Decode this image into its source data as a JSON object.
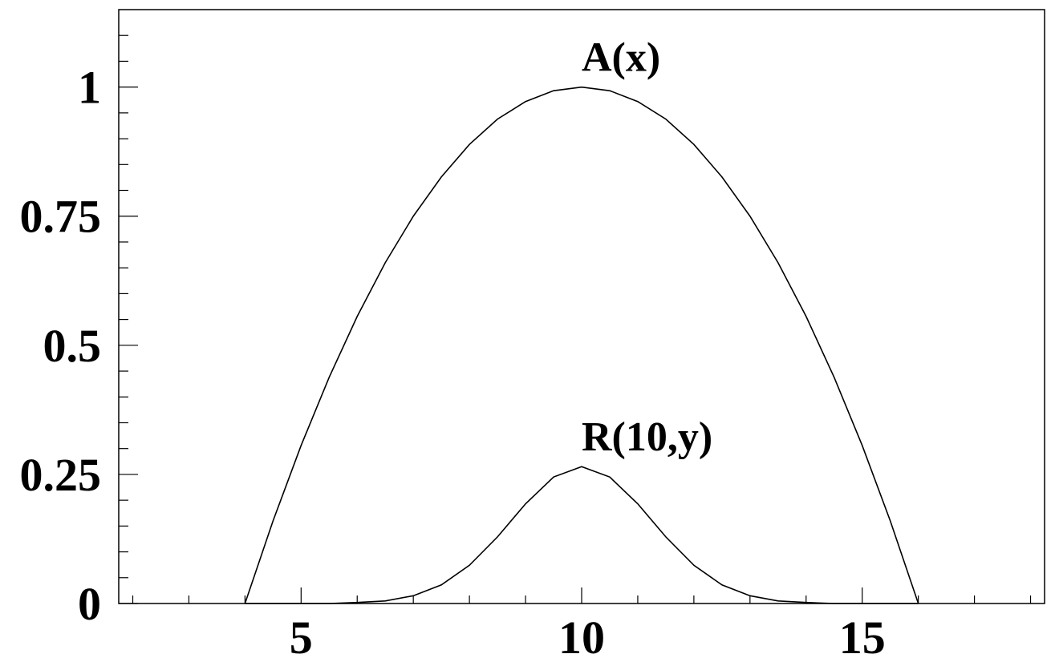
{
  "chart_data": {
    "type": "line",
    "x": [
      4,
      4.5,
      5,
      5.5,
      6,
      6.5,
      7,
      7.5,
      8,
      8.5,
      9,
      9.5,
      10,
      10.5,
      11,
      11.5,
      12,
      12.5,
      13,
      13.5,
      14,
      14.5,
      15,
      15.5,
      16
    ],
    "series": [
      {
        "name": "A(x)",
        "color": "#000000",
        "values": [
          0,
          0.16,
          0.306,
          0.438,
          0.556,
          0.66,
          0.75,
          0.826,
          0.889,
          0.938,
          0.972,
          0.993,
          1,
          0.993,
          0.972,
          0.938,
          0.889,
          0.826,
          0.75,
          0.66,
          0.556,
          0.438,
          0.306,
          0.16,
          0
        ]
      },
      {
        "name": "R(10,y)",
        "color": "#000000",
        "values": [
          0,
          0,
          0,
          0,
          0.002,
          0.005,
          0.015,
          0.036,
          0.074,
          0.129,
          0.193,
          0.245,
          0.265,
          0.245,
          0.193,
          0.129,
          0.074,
          0.036,
          0.015,
          0.005,
          0.002,
          0,
          0,
          0,
          0
        ]
      }
    ],
    "xlim": [
      1.75,
      18.25
    ],
    "ylim": [
      0,
      1.15
    ],
    "xticks": [
      5,
      10,
      15
    ],
    "yticks": [
      0,
      0.25,
      0.5,
      0.75,
      1
    ],
    "xminorticks": [
      2,
      3,
      4,
      6,
      7,
      8,
      9,
      11,
      12,
      13,
      14,
      16,
      17,
      18
    ],
    "yminorticks": [
      0.05,
      0.1,
      0.15,
      0.2,
      0.3,
      0.35,
      0.4,
      0.45,
      0.55,
      0.6,
      0.65,
      0.7,
      0.8,
      0.85,
      0.9,
      0.95,
      1.05,
      1.1
    ],
    "grid": false
  }
}
